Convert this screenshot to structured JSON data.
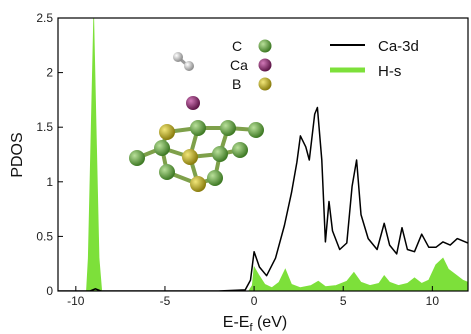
{
  "chart_data": {
    "type": "line",
    "xlabel": "E-E",
    "xlabel_sub": "f",
    "xlabel_unit": " (eV)",
    "ylabel": "PDOS",
    "xlim": [
      -11,
      12
    ],
    "ylim": [
      0,
      2.5
    ],
    "x_ticks": [
      -10,
      -5,
      0,
      5,
      10
    ],
    "y_ticks": [
      0,
      0.5,
      1,
      1.5,
      2,
      2.5
    ],
    "legend": {
      "placement": "top-right"
    },
    "series": [
      {
        "name": "Ca-3d",
        "style": "line",
        "color": "#000000",
        "points": [
          [
            -11,
            0
          ],
          [
            -9.2,
            0
          ],
          [
            -8.9,
            0.02
          ],
          [
            -8.6,
            0
          ],
          [
            -2,
            0
          ],
          [
            -0.5,
            0.01
          ],
          [
            -0.2,
            0.1
          ],
          [
            0,
            0.36
          ],
          [
            0.3,
            0.22
          ],
          [
            0.7,
            0.14
          ],
          [
            1.2,
            0.3
          ],
          [
            1.7,
            0.6
          ],
          [
            2.1,
            0.9
          ],
          [
            2.4,
            1.18
          ],
          [
            2.6,
            1.42
          ],
          [
            2.9,
            1.32
          ],
          [
            3.1,
            1.2
          ],
          [
            3.4,
            1.62
          ],
          [
            3.55,
            1.68
          ],
          [
            3.8,
            1.2
          ],
          [
            4.0,
            0.45
          ],
          [
            4.2,
            0.82
          ],
          [
            4.4,
            0.55
          ],
          [
            4.8,
            0.38
          ],
          [
            5.2,
            0.44
          ],
          [
            5.5,
            0.96
          ],
          [
            5.75,
            1.2
          ],
          [
            6.0,
            0.7
          ],
          [
            6.4,
            0.48
          ],
          [
            6.9,
            0.38
          ],
          [
            7.3,
            0.62
          ],
          [
            7.6,
            0.42
          ],
          [
            8.0,
            0.34
          ],
          [
            8.3,
            0.58
          ],
          [
            8.6,
            0.38
          ],
          [
            9.0,
            0.36
          ],
          [
            9.4,
            0.52
          ],
          [
            9.8,
            0.4
          ],
          [
            10.2,
            0.4
          ],
          [
            10.6,
            0.45
          ],
          [
            11.0,
            0.42
          ],
          [
            11.4,
            0.48
          ],
          [
            12,
            0.44
          ]
        ]
      },
      {
        "name": "H-s",
        "style": "filled",
        "color": "#7de03a",
        "points": [
          [
            -11,
            0
          ],
          [
            -9.4,
            0
          ],
          [
            -9.3,
            0.3
          ],
          [
            -9.15,
            1.4
          ],
          [
            -9.0,
            2.5
          ],
          [
            -8.85,
            1.4
          ],
          [
            -8.7,
            0.3
          ],
          [
            -8.55,
            0
          ],
          [
            -0.3,
            0
          ],
          [
            -0.1,
            0.05
          ],
          [
            0,
            0.22
          ],
          [
            0.25,
            0.15
          ],
          [
            0.6,
            0.06
          ],
          [
            1.0,
            0.03
          ],
          [
            1.4,
            0.08
          ],
          [
            1.75,
            0.2
          ],
          [
            2.1,
            0.06
          ],
          [
            2.6,
            0.03
          ],
          [
            3.2,
            0.05
          ],
          [
            3.6,
            0.09
          ],
          [
            4.0,
            0.04
          ],
          [
            4.6,
            0.05
          ],
          [
            5.2,
            0.09
          ],
          [
            5.6,
            0.17
          ],
          [
            6.0,
            0.08
          ],
          [
            6.5,
            0.05
          ],
          [
            7.0,
            0.07
          ],
          [
            7.3,
            0.14
          ],
          [
            7.6,
            0.08
          ],
          [
            8.1,
            0.05
          ],
          [
            8.6,
            0.07
          ],
          [
            9.0,
            0.12
          ],
          [
            9.4,
            0.07
          ],
          [
            9.8,
            0.1
          ],
          [
            10.2,
            0.24
          ],
          [
            10.6,
            0.3
          ],
          [
            10.9,
            0.2
          ],
          [
            11.3,
            0.15
          ],
          [
            11.7,
            0.1
          ],
          [
            12,
            0.08
          ]
        ]
      }
    ],
    "inset": {
      "legend": [
        {
          "label": "C",
          "color": "#5b9a3a"
        },
        {
          "label": "Ca",
          "color": "#8a2c6e"
        },
        {
          "label": "B",
          "color": "#b3a61c"
        }
      ]
    }
  }
}
